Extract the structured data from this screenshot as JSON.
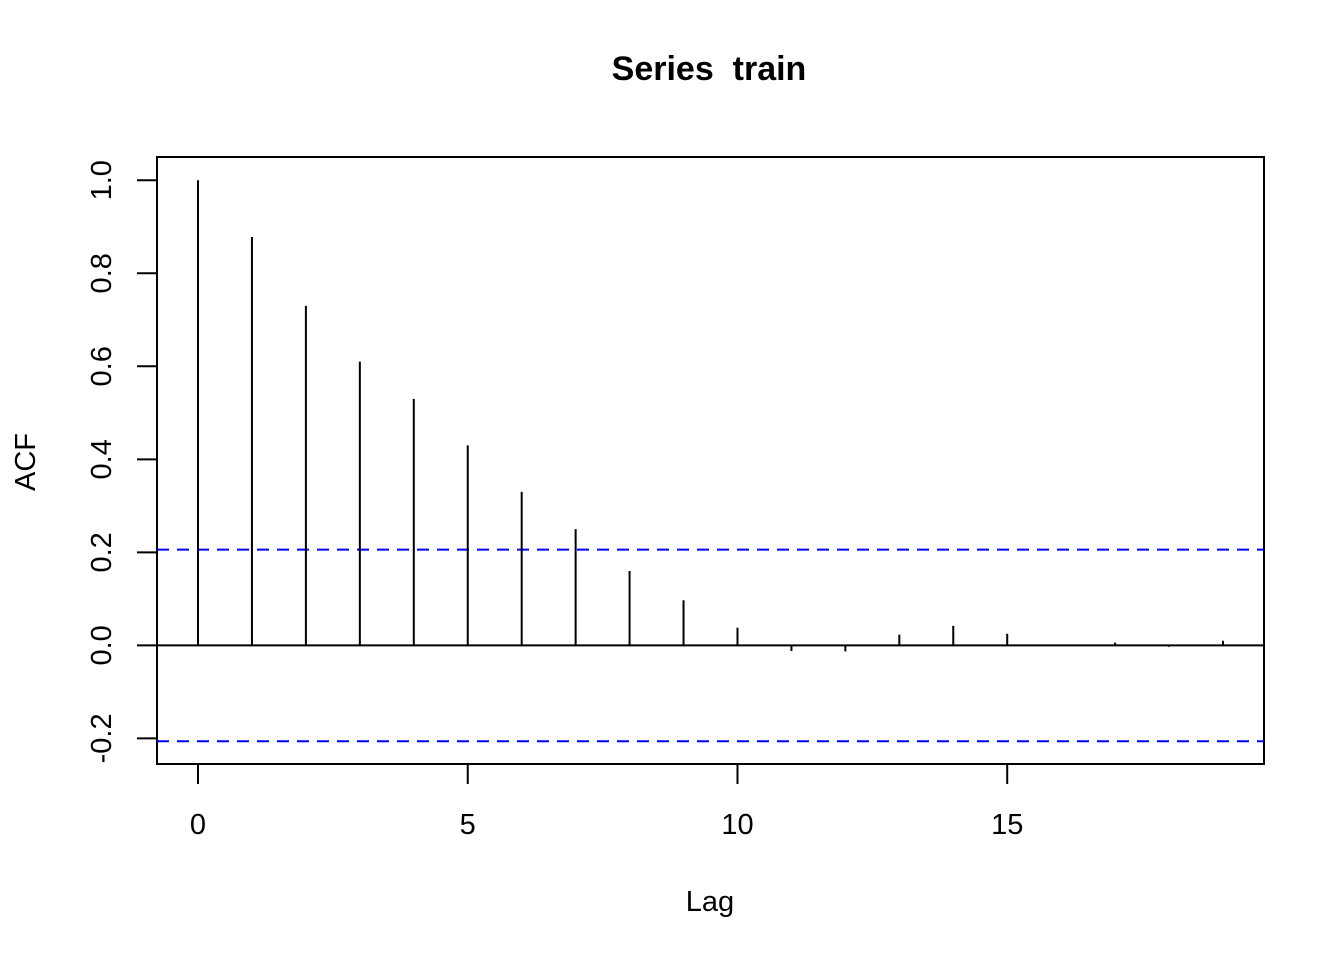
{
  "chart_data": {
    "type": "bar",
    "title": "Series  train",
    "xlabel": "Lag",
    "ylabel": "ACF",
    "x": [
      0,
      1,
      2,
      3,
      4,
      5,
      6,
      7,
      8,
      9,
      10,
      11,
      12,
      13,
      14,
      15,
      16,
      17,
      18,
      19
    ],
    "values": [
      1.0,
      0.878,
      0.73,
      0.61,
      0.53,
      0.43,
      0.33,
      0.25,
      0.16,
      0.097,
      0.038,
      -0.012,
      -0.013,
      0.023,
      0.042,
      0.025,
      0.002,
      0.006,
      -0.003,
      0.01
    ],
    "xlim": [
      -0.76,
      19.76
    ],
    "ylim": [
      -0.255,
      1.05
    ],
    "x_ticks": [
      0,
      5,
      10,
      15
    ],
    "x_tick_labels": [
      "0",
      "5",
      "10",
      "15"
    ],
    "y_ticks": [
      -0.2,
      0.0,
      0.2,
      0.4,
      0.6,
      0.8,
      1.0
    ],
    "y_tick_labels": [
      "-0.2",
      "0.0",
      "0.2",
      "0.4",
      "0.6",
      "0.8",
      "1.0"
    ],
    "confidence_bounds": [
      0.206,
      -0.206
    ],
    "colors": {
      "bars": "#000000",
      "zero_line": "#000000",
      "confidence": "#0000ff"
    },
    "grid": false
  }
}
